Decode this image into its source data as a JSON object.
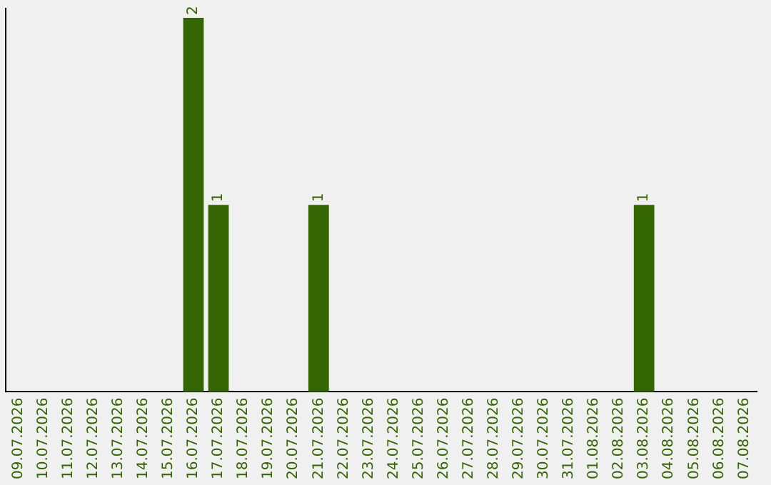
{
  "chart_data": {
    "type": "bar",
    "categories": [
      "09.07.2026",
      "10.07.2026",
      "11.07.2026",
      "12.07.2026",
      "13.07.2026",
      "14.07.2026",
      "15.07.2026",
      "16.07.2026",
      "17.07.2026",
      "18.07.2026",
      "19.07.2026",
      "20.07.2026",
      "21.07.2026",
      "22.07.2026",
      "23.07.2026",
      "24.07.2026",
      "25.07.2026",
      "26.07.2026",
      "27.07.2026",
      "28.07.2026",
      "29.07.2026",
      "30.07.2026",
      "31.07.2026",
      "01.08.2026",
      "02.08.2026",
      "03.08.2026",
      "04.08.2026",
      "05.08.2026",
      "06.08.2026",
      "07.08.2026"
    ],
    "values": [
      0,
      0,
      0,
      0,
      0,
      0,
      0,
      2,
      1,
      0,
      0,
      0,
      1,
      0,
      0,
      0,
      0,
      0,
      0,
      0,
      0,
      0,
      0,
      0,
      0,
      1,
      0,
      0,
      0,
      0
    ],
    "color": "#336600",
    "ylim": [
      0,
      2.05
    ],
    "tick_labels": "x",
    "grid": false,
    "legend": false,
    "value_labels": [
      null,
      null,
      null,
      null,
      null,
      null,
      null,
      "2",
      "1",
      null,
      null,
      null,
      "1",
      null,
      null,
      null,
      null,
      null,
      null,
      null,
      null,
      null,
      null,
      null,
      null,
      "1",
      null,
      null,
      null,
      null
    ]
  }
}
